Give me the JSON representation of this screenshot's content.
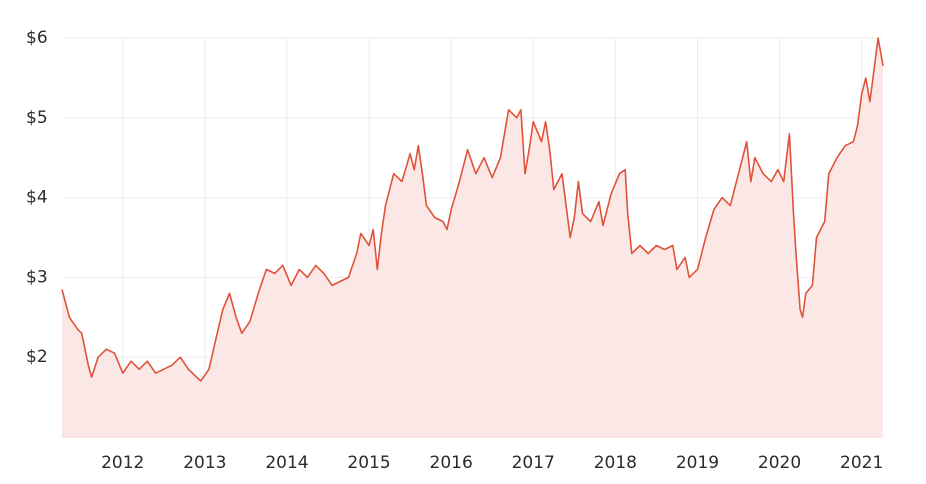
{
  "chart_data": {
    "type": "line",
    "x": [
      2011.26,
      2011.35,
      2011.45,
      2011.5,
      2011.58,
      2011.62,
      2011.7,
      2011.8,
      2011.9,
      2012.0,
      2012.1,
      2012.2,
      2012.3,
      2012.4,
      2012.5,
      2012.6,
      2012.7,
      2012.8,
      2012.9,
      2012.95,
      2013.05,
      2013.15,
      2013.22,
      2013.3,
      2013.38,
      2013.45,
      2013.55,
      2013.65,
      2013.75,
      2013.85,
      2013.95,
      2014.05,
      2014.15,
      2014.25,
      2014.35,
      2014.45,
      2014.55,
      2014.65,
      2014.75,
      2014.85,
      2014.9,
      2015.0,
      2015.05,
      2015.1,
      2015.15,
      2015.2,
      2015.3,
      2015.4,
      2015.5,
      2015.55,
      2015.6,
      2015.65,
      2015.7,
      2015.8,
      2015.9,
      2015.95,
      2016.0,
      2016.1,
      2016.2,
      2016.3,
      2016.4,
      2016.5,
      2016.6,
      2016.7,
      2016.8,
      2016.85,
      2016.9,
      2016.95,
      2017.0,
      2017.1,
      2017.15,
      2017.2,
      2017.25,
      2017.35,
      2017.4,
      2017.45,
      2017.5,
      2017.55,
      2017.6,
      2017.7,
      2017.8,
      2017.85,
      2017.95,
      2018.05,
      2018.12,
      2018.15,
      2018.2,
      2018.3,
      2018.4,
      2018.5,
      2018.6,
      2018.7,
      2018.75,
      2018.85,
      2018.9,
      2019.0,
      2019.1,
      2019.2,
      2019.3,
      2019.4,
      2019.5,
      2019.6,
      2019.65,
      2019.7,
      2019.8,
      2019.9,
      2019.98,
      2020.05,
      2020.12,
      2020.17,
      2020.2,
      2020.25,
      2020.28,
      2020.32,
      2020.4,
      2020.45,
      2020.5,
      2020.55,
      2020.6,
      2020.7,
      2020.8,
      2020.9,
      2020.95,
      2021.0,
      2021.05,
      2021.1,
      2021.15,
      2021.2,
      2021.26
    ],
    "series": [
      {
        "color": "#e0523a",
        "fill": "#fbe8e6",
        "values": [
          2.85,
          2.5,
          2.35,
          2.3,
          1.9,
          1.75,
          2.0,
          2.1,
          2.05,
          1.8,
          1.95,
          1.85,
          1.95,
          1.8,
          1.85,
          1.9,
          2.0,
          1.85,
          1.75,
          1.7,
          1.85,
          2.3,
          2.6,
          2.8,
          2.5,
          2.3,
          2.45,
          2.8,
          3.1,
          3.05,
          3.15,
          2.9,
          3.1,
          3.0,
          3.15,
          3.05,
          2.9,
          2.95,
          3.0,
          3.3,
          3.55,
          3.4,
          3.6,
          3.1,
          3.55,
          3.9,
          4.3,
          4.2,
          4.55,
          4.35,
          4.65,
          4.3,
          3.9,
          3.75,
          3.7,
          3.6,
          3.85,
          4.2,
          4.6,
          4.3,
          4.5,
          4.25,
          4.5,
          5.1,
          5.0,
          5.1,
          4.3,
          4.6,
          4.95,
          4.7,
          4.95,
          4.6,
          4.1,
          4.3,
          3.9,
          3.5,
          3.75,
          4.2,
          3.8,
          3.7,
          3.95,
          3.65,
          4.05,
          4.3,
          4.35,
          3.8,
          3.3,
          3.4,
          3.3,
          3.4,
          3.35,
          3.4,
          3.1,
          3.25,
          3.0,
          3.1,
          3.5,
          3.85,
          4.0,
          3.9,
          4.3,
          4.7,
          4.2,
          4.5,
          4.3,
          4.2,
          4.35,
          4.2,
          4.8,
          3.8,
          3.3,
          2.6,
          2.5,
          2.8,
          2.9,
          3.5,
          3.6,
          3.7,
          4.3,
          4.5,
          4.65,
          4.7,
          4.9,
          5.3,
          5.5,
          5.2,
          5.6,
          6.0,
          5.65
        ]
      }
    ],
    "xlim": [
      2011.26,
      2021.26
    ],
    "xticks": [
      2012,
      2013,
      2014,
      2015,
      2016,
      2017,
      2018,
      2019,
      2020,
      2021
    ],
    "ylim": [
      1,
      6
    ],
    "yticks": [
      {
        "value": 2,
        "label": "$2"
      },
      {
        "value": 3,
        "label": "$3"
      },
      {
        "value": 4,
        "label": "$4"
      },
      {
        "value": 5,
        "label": "$5"
      },
      {
        "value": 6,
        "label": "$6"
      }
    ],
    "grid": true
  }
}
